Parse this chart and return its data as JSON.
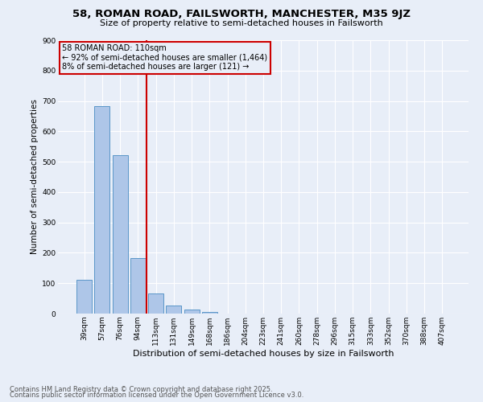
{
  "title1": "58, ROMAN ROAD, FAILSWORTH, MANCHESTER, M35 9JZ",
  "title2": "Size of property relative to semi-detached houses in Failsworth",
  "xlabel": "Distribution of semi-detached houses by size in Failsworth",
  "ylabel": "Number of semi-detached properties",
  "footer1": "Contains HM Land Registry data © Crown copyright and database right 2025.",
  "footer2": "Contains public sector information licensed under the Open Government Licence v3.0.",
  "categories": [
    "39sqm",
    "57sqm",
    "76sqm",
    "94sqm",
    "113sqm",
    "131sqm",
    "149sqm",
    "168sqm",
    "186sqm",
    "204sqm",
    "223sqm",
    "241sqm",
    "260sqm",
    "278sqm",
    "296sqm",
    "315sqm",
    "333sqm",
    "352sqm",
    "370sqm",
    "388sqm",
    "407sqm"
  ],
  "values": [
    112,
    682,
    521,
    182,
    65,
    27,
    12,
    6,
    0,
    0,
    0,
    0,
    0,
    0,
    0,
    0,
    0,
    0,
    0,
    0,
    0
  ],
  "bar_color": "#aec6e8",
  "bar_edge_color": "#5a96c8",
  "vline_color": "#cc0000",
  "annotation_line1": "58 ROMAN ROAD: 110sqm",
  "annotation_line2": "← 92% of semi-detached houses are smaller (1,464)",
  "annotation_line3": "8% of semi-detached houses are larger (121) →",
  "annotation_box_color": "#cc0000",
  "ylim": [
    0,
    900
  ],
  "yticks": [
    0,
    100,
    200,
    300,
    400,
    500,
    600,
    700,
    800,
    900
  ],
  "bg_color": "#e8eef8",
  "grid_color": "#ffffff",
  "title1_fontsize": 9.5,
  "title2_fontsize": 8,
  "ylabel_fontsize": 7.5,
  "xlabel_fontsize": 8,
  "tick_fontsize": 6.5,
  "footer_fontsize": 6,
  "vline_bar_index": 4
}
